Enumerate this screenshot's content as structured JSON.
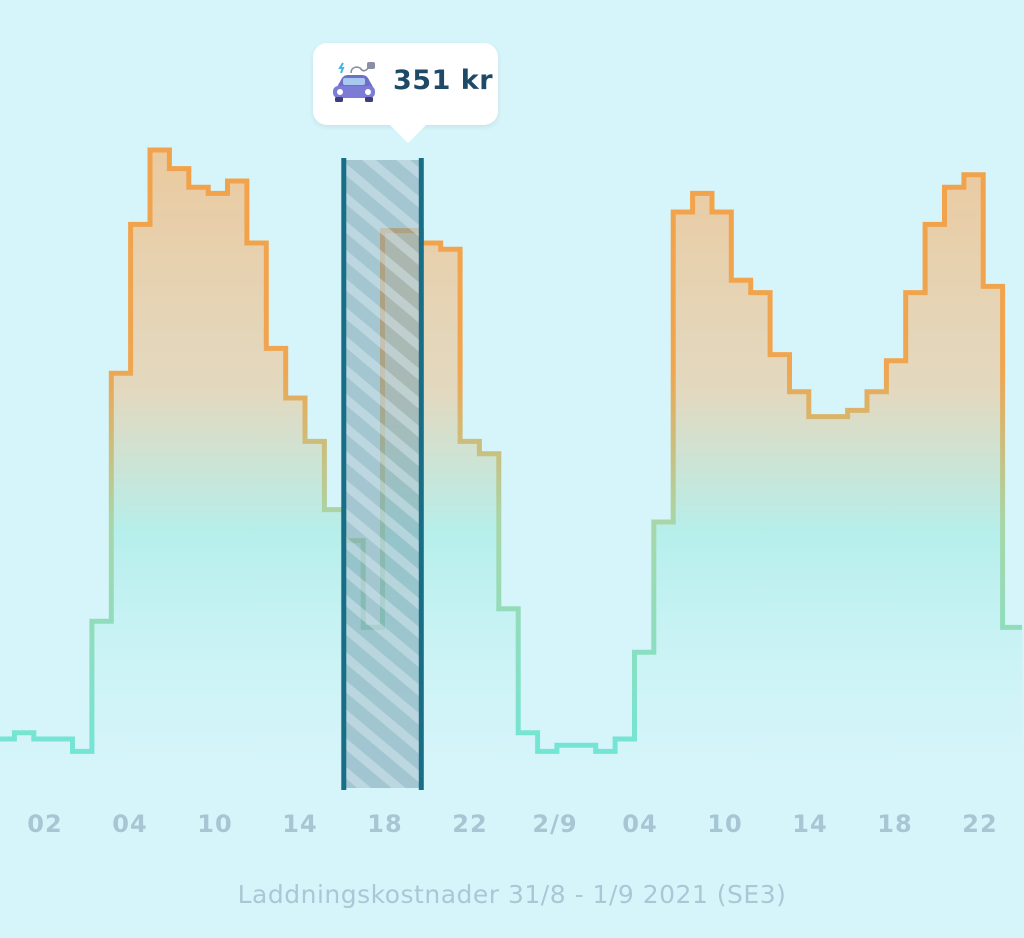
{
  "chart_data": {
    "type": "line",
    "title": "",
    "subtitle": "Laddningskostnader 31/8 - 1/9 2021 (SE3)",
    "xlabel": "",
    "ylabel": "",
    "step": true,
    "x_tick_labels": [
      "02",
      "04",
      "10",
      "14",
      "18",
      "22",
      "2/9",
      "04",
      "10",
      "14",
      "18",
      "22"
    ],
    "series": [
      {
        "values": [
          5,
          6,
          5,
          5,
          3,
          24,
          64,
          88,
          100,
          97,
          94,
          93,
          95,
          85,
          68,
          60,
          53,
          42,
          37,
          23,
          87,
          87,
          85,
          84,
          53,
          51,
          26,
          6,
          3,
          4,
          4,
          3,
          5,
          19,
          40,
          90,
          93,
          90,
          79,
          77,
          67,
          61,
          57,
          57,
          58,
          61,
          66,
          77,
          88,
          94,
          96,
          78,
          23
        ]
      }
    ],
    "highlight": {
      "start_index": 18,
      "end_index": 21,
      "label": "351 kr",
      "icon": "electric-car-icon"
    },
    "colors": {
      "low": "#7ce5d6",
      "high": "#f2a24a",
      "highlight_border": "#176e86",
      "background": "#d6f5fb"
    },
    "grid": false,
    "legend": "none"
  }
}
